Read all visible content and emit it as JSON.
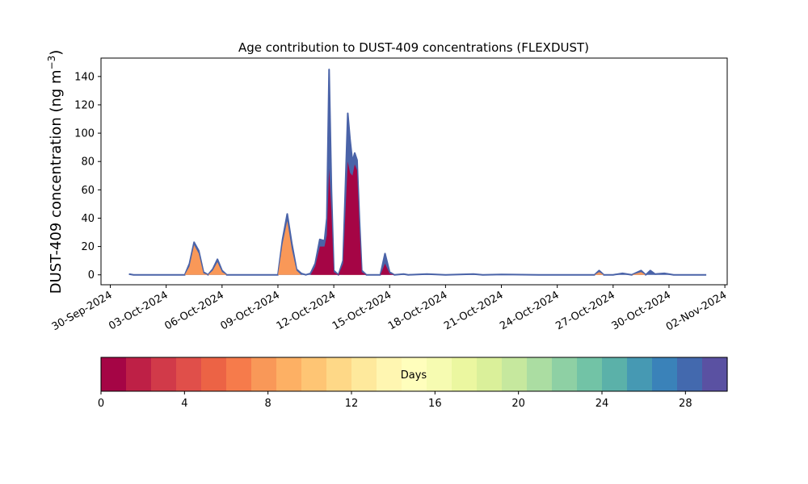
{
  "chart_data": {
    "type": "area",
    "title": "Age contribution to DUST-409 concentrations (FLEXDUST)",
    "ylabel_main": "DUST-409 concentration (ng m",
    "ylabel_sup": "−3",
    "ylabel_close": ")",
    "xlabel": "",
    "xlim": [
      "2024-09-29T12:00",
      "2024-11-02T03:00"
    ],
    "ylim": [
      -7,
      153
    ],
    "x_ticks": [
      "30-Sep-2024",
      "03-Oct-2024",
      "06-Oct-2024",
      "09-Oct-2024",
      "12-Oct-2024",
      "15-Oct-2024",
      "18-Oct-2024",
      "21-Oct-2024",
      "24-Oct-2024",
      "27-Oct-2024",
      "30-Oct-2024",
      "02-Nov-2024"
    ],
    "y_ticks": [
      0,
      20,
      40,
      60,
      80,
      100,
      120,
      140
    ],
    "series": [
      {
        "stack": "total",
        "color": "#4a63a8",
        "points": [
          [
            "2024-10-01T00:00",
            0.5
          ],
          [
            "2024-10-01T06:00",
            0
          ],
          [
            "2024-10-04T00:00",
            0
          ],
          [
            "2024-10-04T06:00",
            8
          ],
          [
            "2024-10-04T12:00",
            23
          ],
          [
            "2024-10-04T18:00",
            17
          ],
          [
            "2024-10-05T00:00",
            2
          ],
          [
            "2024-10-05T06:00",
            0
          ],
          [
            "2024-10-05T12:00",
            4
          ],
          [
            "2024-10-05T18:00",
            11
          ],
          [
            "2024-10-06T00:00",
            3
          ],
          [
            "2024-10-06T06:00",
            0
          ],
          [
            "2024-10-09T00:00",
            0
          ],
          [
            "2024-10-09T06:00",
            25
          ],
          [
            "2024-10-09T12:00",
            43
          ],
          [
            "2024-10-09T18:00",
            22
          ],
          [
            "2024-10-10T00:00",
            4
          ],
          [
            "2024-10-10T06:00",
            1
          ],
          [
            "2024-10-10T12:00",
            0
          ],
          [
            "2024-10-10T18:00",
            1
          ],
          [
            "2024-10-11T00:00",
            8
          ],
          [
            "2024-10-11T06:00",
            25
          ],
          [
            "2024-10-11T12:00",
            24
          ],
          [
            "2024-10-11T15:00",
            40
          ],
          [
            "2024-10-11T18:00",
            145
          ],
          [
            "2024-10-11T21:00",
            60
          ],
          [
            "2024-10-12T00:00",
            3
          ],
          [
            "2024-10-12T06:00",
            0
          ],
          [
            "2024-10-12T12:00",
            10
          ],
          [
            "2024-10-12T18:00",
            114
          ],
          [
            "2024-10-12T21:00",
            95
          ],
          [
            "2024-10-13T00:00",
            80
          ],
          [
            "2024-10-13T03:00",
            86
          ],
          [
            "2024-10-13T06:00",
            81
          ],
          [
            "2024-10-13T09:00",
            40
          ],
          [
            "2024-10-13T12:00",
            3
          ],
          [
            "2024-10-13T18:00",
            0
          ],
          [
            "2024-10-14T12:00",
            0
          ],
          [
            "2024-10-14T18:00",
            15
          ],
          [
            "2024-10-15T00:00",
            2
          ],
          [
            "2024-10-15T06:00",
            0
          ],
          [
            "2024-10-15T18:00",
            0.5
          ],
          [
            "2024-10-16T00:00",
            0
          ],
          [
            "2024-10-17T00:00",
            0.5
          ],
          [
            "2024-10-18T00:00",
            0
          ],
          [
            "2024-10-19T12:00",
            0.5
          ],
          [
            "2024-10-20T00:00",
            0
          ],
          [
            "2024-10-21T00:00",
            0.3
          ],
          [
            "2024-10-23T00:00",
            0
          ],
          [
            "2024-10-26T00:00",
            0
          ],
          [
            "2024-10-26T06:00",
            3
          ],
          [
            "2024-10-26T12:00",
            0
          ],
          [
            "2024-10-27T00:00",
            0
          ],
          [
            "2024-10-27T12:00",
            1
          ],
          [
            "2024-10-28T00:00",
            0
          ],
          [
            "2024-10-28T12:00",
            3
          ],
          [
            "2024-10-28T18:00",
            0
          ],
          [
            "2024-10-29T00:00",
            3
          ],
          [
            "2024-10-29T06:00",
            0.5
          ],
          [
            "2024-10-29T18:00",
            1
          ],
          [
            "2024-10-30T06:00",
            0
          ],
          [
            "2024-10-31T00:00",
            0
          ],
          [
            "2024-11-01T00:00",
            0
          ]
        ]
      },
      {
        "stack": "8 days",
        "color": "#f99858",
        "points": [
          [
            "2024-10-04T00:00",
            0
          ],
          [
            "2024-10-04T06:00",
            6
          ],
          [
            "2024-10-04T12:00",
            21
          ],
          [
            "2024-10-04T18:00",
            15
          ],
          [
            "2024-10-05T00:00",
            1
          ],
          [
            "2024-10-05T06:00",
            0
          ],
          [
            "2024-10-05T12:00",
            3
          ],
          [
            "2024-10-05T18:00",
            9
          ],
          [
            "2024-10-06T00:00",
            2
          ],
          [
            "2024-10-06T06:00",
            0
          ],
          [
            "2024-10-09T00:00",
            0
          ],
          [
            "2024-10-09T06:00",
            22
          ],
          [
            "2024-10-09T12:00",
            38
          ],
          [
            "2024-10-09T18:00",
            18
          ],
          [
            "2024-10-10T00:00",
            3
          ],
          [
            "2024-10-10T06:00",
            0
          ],
          [
            "2024-10-11T00:00",
            0
          ],
          [
            "2024-10-11T06:00",
            3
          ],
          [
            "2024-10-11T12:00",
            4
          ],
          [
            "2024-10-11T15:00",
            12
          ],
          [
            "2024-10-11T18:00",
            30
          ],
          [
            "2024-10-11T21:00",
            8
          ],
          [
            "2024-10-12T00:00",
            0
          ],
          [
            "2024-10-12T12:00",
            0
          ],
          [
            "2024-10-12T18:00",
            6
          ],
          [
            "2024-10-13T00:00",
            4
          ],
          [
            "2024-10-13T06:00",
            6
          ],
          [
            "2024-10-13T12:00",
            0
          ],
          [
            "2024-10-26T00:00",
            0
          ],
          [
            "2024-10-26T06:00",
            2
          ],
          [
            "2024-10-26T12:00",
            0
          ],
          [
            "2024-10-28T00:00",
            0
          ],
          [
            "2024-10-28T12:00",
            2
          ],
          [
            "2024-10-28T18:00",
            0
          ]
        ]
      },
      {
        "stack": "1 day",
        "color": "#a50545",
        "points": [
          [
            "2024-10-10T18:00",
            0
          ],
          [
            "2024-10-11T00:00",
            6
          ],
          [
            "2024-10-11T06:00",
            20
          ],
          [
            "2024-10-11T12:00",
            20
          ],
          [
            "2024-10-11T15:00",
            28
          ],
          [
            "2024-10-11T18:00",
            75
          ],
          [
            "2024-10-11T21:00",
            45
          ],
          [
            "2024-10-12T00:00",
            2
          ],
          [
            "2024-10-12T06:00",
            0
          ],
          [
            "2024-10-12T12:00",
            8
          ],
          [
            "2024-10-12T18:00",
            80
          ],
          [
            "2024-10-12T21:00",
            72
          ],
          [
            "2024-10-13T00:00",
            70
          ],
          [
            "2024-10-13T03:00",
            78
          ],
          [
            "2024-10-13T06:00",
            74
          ],
          [
            "2024-10-13T09:00",
            35
          ],
          [
            "2024-10-13T12:00",
            2
          ],
          [
            "2024-10-13T18:00",
            0
          ],
          [
            "2024-10-14T12:00",
            0
          ],
          [
            "2024-10-14T18:00",
            8
          ],
          [
            "2024-10-15T00:00",
            1
          ],
          [
            "2024-10-15T06:00",
            0
          ]
        ]
      }
    ],
    "colorbar": {
      "label": "Days",
      "ticks": [
        0,
        4,
        8,
        12,
        16,
        20,
        24,
        28
      ],
      "vmin": 0,
      "vmax": 30,
      "colors": [
        "#a50545",
        "#be2046",
        "#d13a49",
        "#e04f4a",
        "#ec6345",
        "#f67b4b",
        "#f99858",
        "#fdb064",
        "#fec574",
        "#fed887",
        "#fee99c",
        "#fff6b1",
        "#fffebc",
        "#f6fbb1",
        "#ebf7a0",
        "#daf09a",
        "#c6e89e",
        "#abdda2",
        "#8ed0a4",
        "#72c3a6",
        "#5bb1a9",
        "#4699b3",
        "#3a82b9",
        "#4369ae",
        "#5a51a2"
      ]
    }
  }
}
